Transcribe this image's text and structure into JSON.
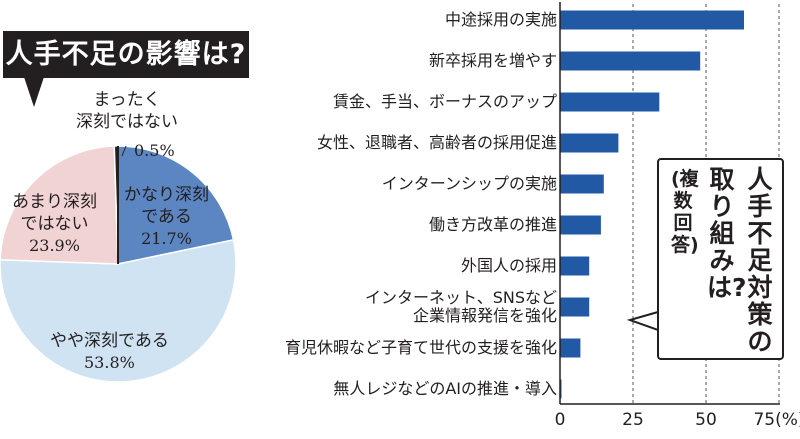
{
  "pie": {
    "title": "人手不足の影響は?",
    "slices": [
      {
        "name": "かなり深刻である",
        "value": 21.7,
        "color": "#5b86c2",
        "lines": [
          "かなり深刻",
          "である"
        ],
        "pct_label": "21.7%"
      },
      {
        "name": "やや深刻である",
        "value": 53.8,
        "color": "#cfe3f3",
        "lines": [
          "やや深刻である"
        ],
        "pct_label": "53.8%"
      },
      {
        "name": "あまり深刻ではない",
        "value": 23.9,
        "color": "#f2d3d3",
        "lines": [
          "あまり深刻",
          "ではない"
        ],
        "pct_label": "23.9%"
      },
      {
        "name": "まったく深刻ではない",
        "value": 0.5,
        "color": "#231f20",
        "lines": [
          "まったく",
          "深刻ではない"
        ],
        "pct_label": "0.5%"
      }
    ]
  },
  "chart_data": [
    {
      "type": "pie",
      "title": "人手不足の影響は?",
      "categories": [
        "かなり深刻である",
        "やや深刻である",
        "あまり深刻ではない",
        "まったく深刻ではない"
      ],
      "values": [
        21.7,
        53.8,
        23.9,
        0.5
      ],
      "unit": "%"
    },
    {
      "type": "bar",
      "orientation": "horizontal",
      "title": "人手不足対策の取り組みは?",
      "subtitle": "(複数回答)",
      "categories": [
        "中途採用の実施",
        "新卒採用を増やす",
        "賃金、手当、ボーナスのアップ",
        "女性、退職者、高齢者の採用促進",
        "インターンシップの実施",
        "働き方改革の推進",
        "外国人の採用",
        "インターネット、SNSなど企業情報発信を強化",
        "育児休暇など子育て世代の支援を強化",
        "無人レジなどのAIの推進・導入"
      ],
      "values": [
        63,
        48,
        34,
        20,
        15,
        14,
        10,
        10,
        7,
        0.5
      ],
      "xlim": [
        0,
        75
      ],
      "ticks": [
        0,
        25,
        50,
        75
      ],
      "tick_labels": [
        "0",
        "25",
        "50",
        "75(%)"
      ],
      "grid": "dashed-vertical",
      "bar_color": "#2159a5"
    }
  ],
  "bar_chart": {
    "labels": [
      [
        "中途採用の実施"
      ],
      [
        "新卒採用を増やす"
      ],
      [
        "賃金、手当、ボーナスのアップ"
      ],
      [
        "女性、退職者、高齢者の採用促進"
      ],
      [
        "インターンシップの実施"
      ],
      [
        "働き方改革の推進"
      ],
      [
        "外国人の採用"
      ],
      [
        "インターネット、SNSなど",
        "企業情報発信を強化"
      ],
      [
        "育児休暇など子育て世代の支援を強化"
      ],
      [
        "無人レジなどのAIの推進・導入"
      ]
    ],
    "vertical_title": {
      "col1": "人手不足対策の",
      "col2": "取り組みは?",
      "col3": "(複数回答)"
    }
  }
}
